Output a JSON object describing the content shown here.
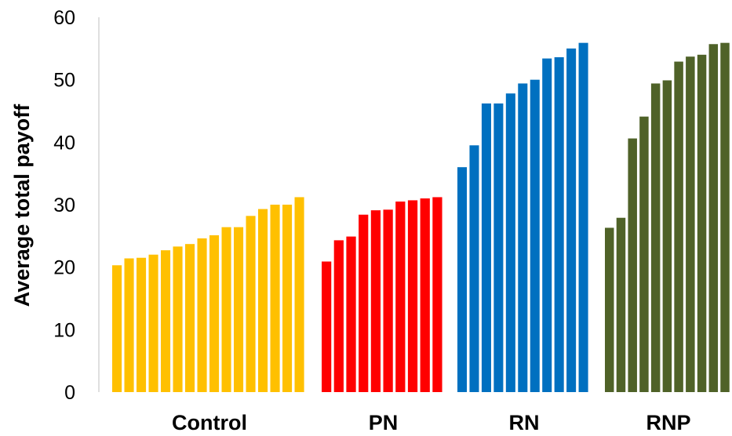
{
  "chart_data": {
    "type": "bar",
    "title": "",
    "xlabel": "",
    "ylabel": "Average total payoff",
    "ylim": [
      0,
      60
    ],
    "yticks": [
      "0",
      "10",
      "20",
      "30",
      "40",
      "50",
      "60"
    ],
    "grid": false,
    "legend": "none",
    "groups": [
      {
        "name": "Control",
        "color": "#FFC000",
        "values": [
          20.3,
          21.4,
          21.5,
          22.0,
          22.7,
          23.3,
          23.7,
          24.6,
          25.1,
          26.4,
          26.4,
          28.2,
          29.3,
          30.0,
          30.0,
          31.2
        ]
      },
      {
        "name": "PN",
        "color": "#FF0000",
        "values": [
          20.9,
          24.3,
          24.9,
          28.4,
          29.1,
          29.2,
          30.5,
          30.7,
          31.0,
          31.2
        ]
      },
      {
        "name": "RN",
        "color": "#0070C0",
        "values": [
          36.0,
          39.5,
          46.2,
          46.2,
          47.8,
          49.4,
          50.0,
          53.4,
          53.6,
          55.0,
          55.9
        ]
      },
      {
        "name": "RNP",
        "color": "#4F6228",
        "values": [
          26.3,
          27.9,
          40.6,
          44.1,
          49.4,
          49.9,
          52.9,
          53.7,
          54.0,
          55.7,
          55.9
        ]
      }
    ]
  }
}
